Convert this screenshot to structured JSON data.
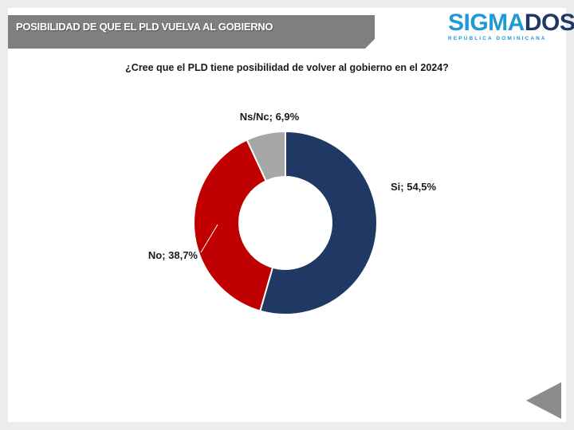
{
  "header": {
    "title": "POSIBILIDAD DE QUE EL PLD VUELVA AL GOBIERNO"
  },
  "logo": {
    "main": "SIGMADOS",
    "subtitle": "REPÚBLICA DOMINICANA"
  },
  "colors": {
    "header_bar": "#7f7f7f",
    "logo_blue": "#1f9ad6",
    "logo_dark": "#1f3864",
    "si": "#1f3864",
    "no": "#c00000",
    "nsnc": "#a6a6a6",
    "nav_arrow": "#8c8c8c"
  },
  "chart_data": {
    "type": "pie",
    "variant": "donut",
    "title": "¿Cree que el PLD tiene posibilidad de volver al gobierno en el 2024?",
    "categories": [
      "Si",
      "No",
      "Ns/Nc"
    ],
    "values": [
      54.5,
      38.7,
      6.9
    ],
    "labels": [
      "Si; 54,5%",
      "No; 38,7%",
      "Ns/Nc; 6,9%"
    ],
    "colors": [
      "#1f3864",
      "#c00000",
      "#a6a6a6"
    ]
  },
  "nav": {
    "icon": "previous-arrow-icon"
  }
}
